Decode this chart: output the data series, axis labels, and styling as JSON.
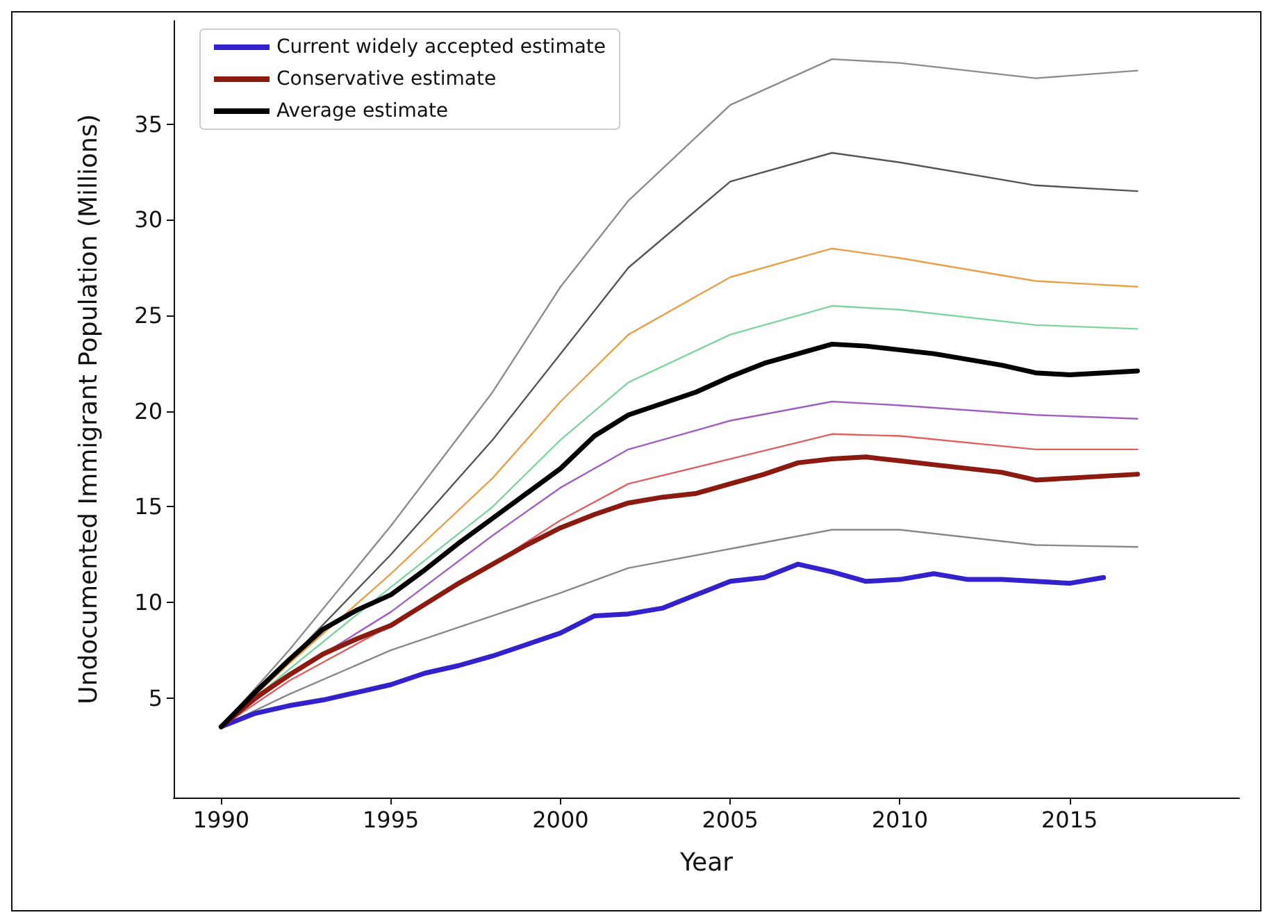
{
  "chart_data": {
    "type": "line",
    "xlabel": "Year",
    "ylabel": "Undocumented Immigrant Population (Millions)",
    "xlim": [
      1988.6,
      2020
    ],
    "ylim": [
      -0.2,
      40.4
    ],
    "xticks": [
      1990,
      1995,
      2000,
      2005,
      2010,
      2015
    ],
    "yticks": [
      5,
      10,
      15,
      20,
      25,
      30,
      35
    ],
    "grid": false,
    "legend": "top left",
    "marker": "none",
    "line_style": "solid",
    "series": [
      {
        "color": "#8c8c8c",
        "x": [
          1990,
          1992,
          1995,
          1998,
          2000,
          2002,
          2005,
          2008,
          2010,
          2014,
          2017
        ],
        "values": [
          3.5,
          7.5,
          14,
          21,
          26.5,
          31,
          36,
          38.4,
          38.2,
          37.4,
          37.8
        ]
      },
      {
        "color": "#555555",
        "x": [
          1990,
          1992,
          1995,
          1998,
          2000,
          2002,
          2005,
          2008,
          2010,
          2014,
          2017
        ],
        "values": [
          3.5,
          7,
          12.5,
          18.5,
          23,
          27.5,
          32,
          33.5,
          33,
          31.8,
          31.5
        ]
      },
      {
        "color": "#e8a04a",
        "x": [
          1990,
          1992,
          1995,
          1998,
          2000,
          2002,
          2005,
          2008,
          2010,
          2014,
          2017
        ],
        "values": [
          3.5,
          6.8,
          11.5,
          16.5,
          20.5,
          24,
          27,
          28.5,
          28,
          26.8,
          26.5
        ]
      },
      {
        "color": "#7fd4a0",
        "x": [
          1990,
          1992,
          1995,
          1998,
          2000,
          2002,
          2005,
          2008,
          2010,
          2014,
          2017
        ],
        "values": [
          3.5,
          6.5,
          10.8,
          15,
          18.5,
          21.5,
          24,
          25.5,
          25.3,
          24.5,
          24.3
        ]
      },
      {
        "color": "#a060c0",
        "x": [
          1990,
          1992,
          1995,
          1998,
          2000,
          2002,
          2005,
          2008,
          2010,
          2014,
          2017
        ],
        "values": [
          3.5,
          6.2,
          9.5,
          13.5,
          16,
          18,
          19.5,
          20.5,
          20.3,
          19.8,
          19.6
        ]
      },
      {
        "color": "#e06060",
        "x": [
          1990,
          1992,
          1995,
          1998,
          2000,
          2002,
          2005,
          2008,
          2010,
          2014,
          2017
        ],
        "values": [
          3.5,
          5.9,
          8.8,
          12,
          14.3,
          16.2,
          17.5,
          18.8,
          18.7,
          18,
          18
        ]
      },
      {
        "color": "#888888",
        "x": [
          1990,
          1992,
          1995,
          1998,
          2000,
          2002,
          2005,
          2008,
          2010,
          2014,
          2017
        ],
        "values": [
          3.5,
          5.2,
          7.5,
          9.3,
          10.5,
          11.8,
          12.8,
          13.8,
          13.8,
          13,
          12.9
        ]
      },
      {
        "name": "Current widely accepted estimate",
        "color": "#3322cc",
        "x": [
          1990,
          1991,
          1992,
          1993,
          1994,
          1995,
          1996,
          1997,
          1998,
          1999,
          2000,
          2001,
          2002,
          2003,
          2004,
          2005,
          2006,
          2007,
          2008,
          2009,
          2010,
          2011,
          2012,
          2013,
          2014,
          2015,
          2016
        ],
        "values": [
          3.5,
          4.2,
          4.6,
          4.9,
          5.3,
          5.7,
          6.3,
          6.7,
          7.2,
          7.8,
          8.4,
          9.3,
          9.4,
          9.7,
          10.4,
          11.1,
          11.3,
          12.0,
          11.6,
          11.1,
          11.2,
          11.5,
          11.2,
          11.2,
          11.1,
          11.0,
          11.3
        ]
      },
      {
        "name": "Conservative estimate",
        "color": "#8b1a10",
        "x": [
          1990,
          1991,
          1992,
          1993,
          1994,
          1995,
          1996,
          1997,
          1998,
          1999,
          2000,
          2001,
          2002,
          2003,
          2004,
          2005,
          2006,
          2007,
          2008,
          2009,
          2010,
          2011,
          2012,
          2013,
          2014,
          2015,
          2016,
          2017
        ],
        "values": [
          3.5,
          5.0,
          6.2,
          7.3,
          8.1,
          8.8,
          9.9,
          11.0,
          12.0,
          13.0,
          13.9,
          14.6,
          15.2,
          15.5,
          15.7,
          16.2,
          16.7,
          17.3,
          17.5,
          17.6,
          17.4,
          17.2,
          17.0,
          16.8,
          16.4,
          16.5,
          16.6,
          16.7
        ]
      },
      {
        "name": "Average estimate",
        "color": "#000000",
        "x": [
          1990,
          1991,
          1992,
          1993,
          1994,
          1995,
          1996,
          1997,
          1998,
          1999,
          2000,
          2001,
          2002,
          2003,
          2004,
          2005,
          2006,
          2007,
          2008,
          2009,
          2010,
          2011,
          2012,
          2013,
          2014,
          2015,
          2016,
          2017
        ],
        "values": [
          3.5,
          5.3,
          7.0,
          8.6,
          9.6,
          10.4,
          11.7,
          13.1,
          14.4,
          15.7,
          17.0,
          18.7,
          19.8,
          20.4,
          21.0,
          21.8,
          22.5,
          23.0,
          23.5,
          23.4,
          23.2,
          23.0,
          22.7,
          22.4,
          22.0,
          21.9,
          22.0,
          22.1
        ]
      }
    ]
  }
}
